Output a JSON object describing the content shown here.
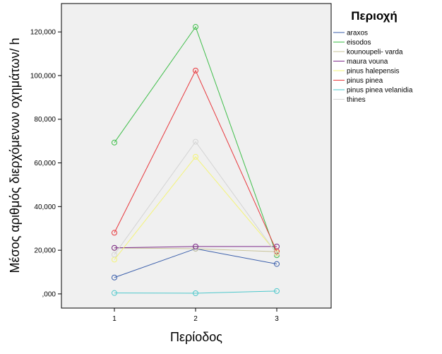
{
  "chart_data": {
    "type": "line",
    "x": [
      1,
      2,
      3
    ],
    "xticks": [
      "1",
      "2",
      "3"
    ],
    "xlabel": "Περίοδος",
    "ylabel": "Μέσος αριθμός διερχόμενων οχημάτων/ h",
    "ylim": [
      -6500,
      133000
    ],
    "yticks": [
      {
        "value": 0,
        "label": ",000"
      },
      {
        "value": 20000,
        "label": "20,000"
      },
      {
        "value": 40000,
        "label": "40,000"
      },
      {
        "value": 60000,
        "label": "60,000"
      },
      {
        "value": 80000,
        "label": "80,000"
      },
      {
        "value": 100000,
        "label": "100,000"
      },
      {
        "value": 120000,
        "label": "120,000"
      }
    ],
    "legend_title": "Περιοχή",
    "legend_position": "right",
    "grid": false,
    "series": [
      {
        "name": "araxos",
        "color": "#3b5fab",
        "values": [
          7500,
          20700,
          13700
        ]
      },
      {
        "name": "eisodos",
        "color": "#3fbe4a",
        "values": [
          69300,
          122300,
          17700
        ]
      },
      {
        "name": "kounoupeli- varda",
        "color": "#c9c49a",
        "values": [
          21000,
          20700,
          19300
        ]
      },
      {
        "name": "maura vouna",
        "color": "#7d2b8b",
        "values": [
          21100,
          21700,
          21700
        ]
      },
      {
        "name": "pinus halepensis",
        "color": "#f4f479",
        "values": [
          15700,
          62800,
          18700
        ]
      },
      {
        "name": "pinus pinea",
        "color": "#e8383d",
        "values": [
          28000,
          102300,
          19500
        ]
      },
      {
        "name": "pinus pinea velanidia",
        "color": "#4ec8cc",
        "values": [
          400,
          300,
          1300
        ]
      },
      {
        "name": "thines",
        "color": "#d4d4d4",
        "values": [
          18000,
          69700,
          18300
        ]
      }
    ]
  }
}
